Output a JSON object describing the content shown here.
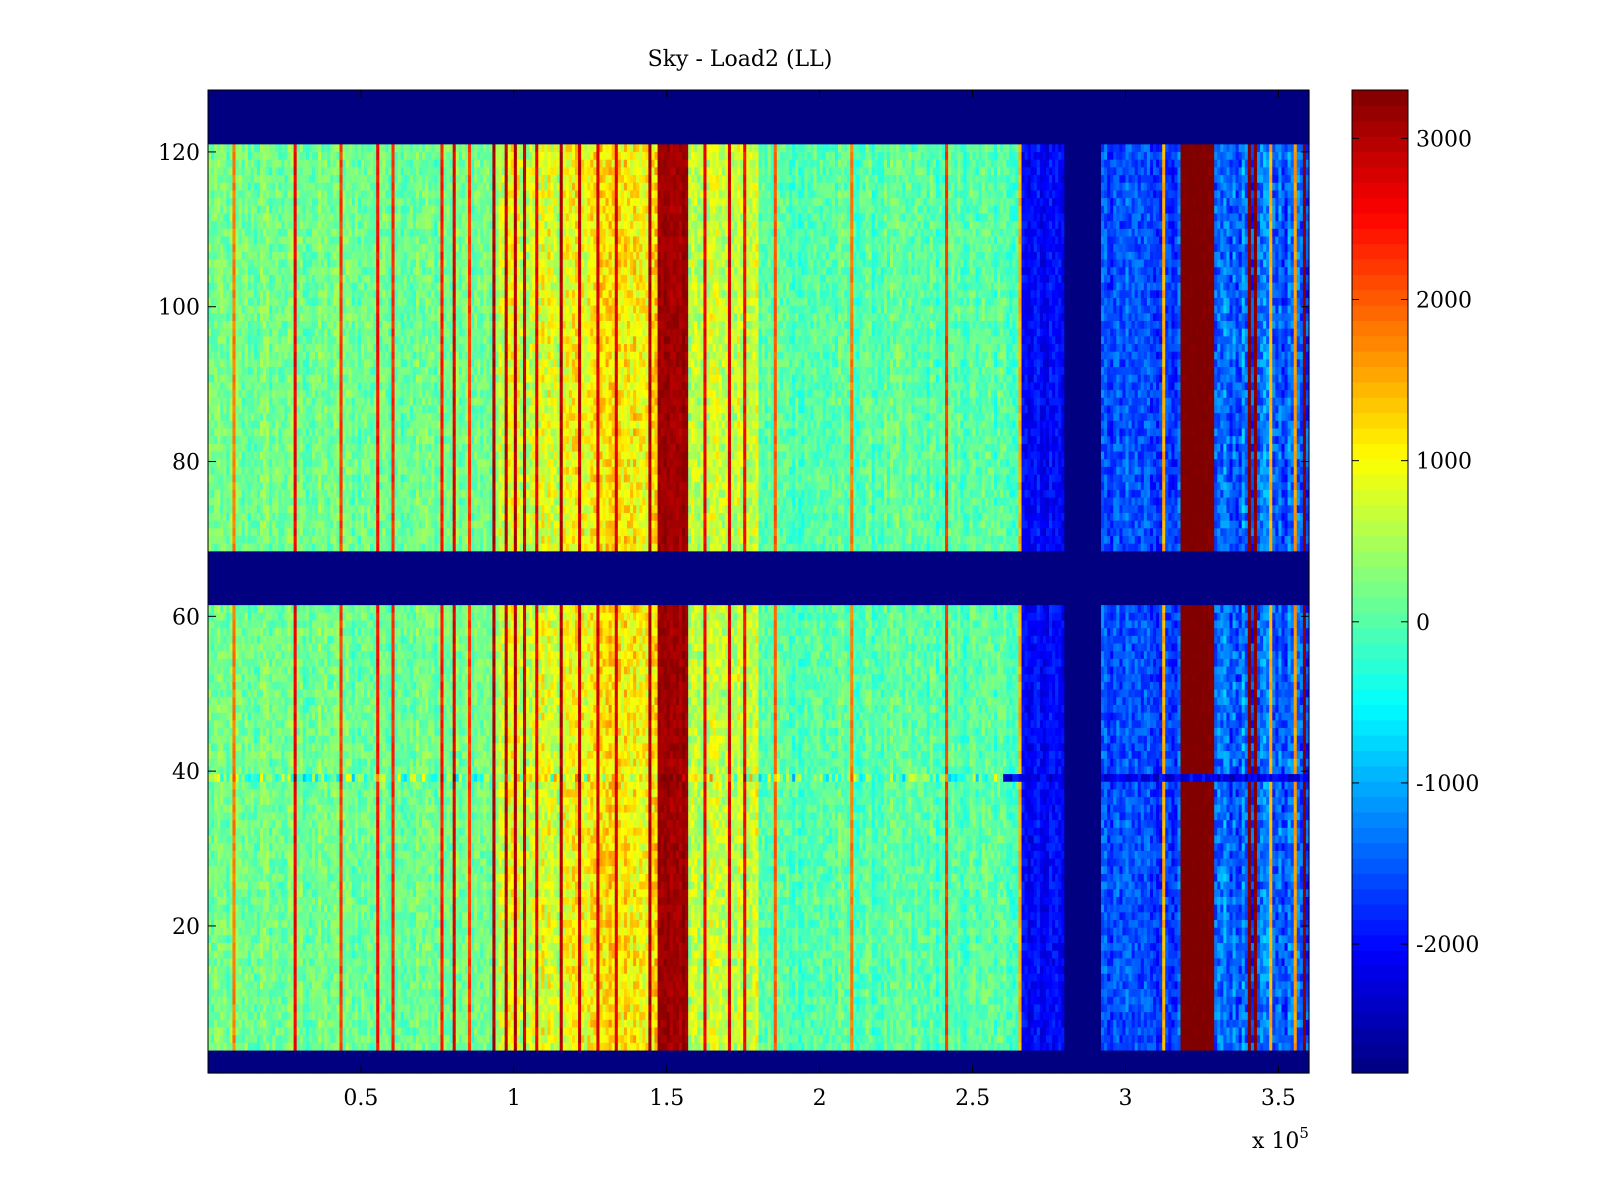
{
  "chart_data": {
    "type": "heatmap",
    "title": "Sky - Load2 (LL)",
    "xlabel": "",
    "ylabel": "",
    "x_multiplier_label": "x 10",
    "x_multiplier_exponent": "5",
    "xlim": [
      0,
      3.6
    ],
    "ylim": [
      1,
      128
    ],
    "x_ticks": [
      0.5,
      1,
      1.5,
      2,
      2.5,
      3,
      3.5
    ],
    "x_tick_labels": [
      "0.5",
      "1",
      "1.5",
      "2",
      "2.5",
      "3",
      "3.5"
    ],
    "y_ticks": [
      20,
      40,
      60,
      80,
      100,
      120
    ],
    "y_tick_labels": [
      "20",
      "40",
      "60",
      "80",
      "100",
      "120"
    ],
    "colormap": "jet",
    "colorbar": {
      "range": [
        -2800,
        3300
      ],
      "ticks": [
        -2000,
        -1000,
        0,
        1000,
        2000,
        3000
      ],
      "tick_labels": [
        "-2000",
        "-1000",
        "0",
        "1000",
        "2000",
        "3000"
      ]
    },
    "masked_rows": [
      {
        "from": 1,
        "to": 4,
        "value": -2800
      },
      {
        "from": 62,
        "to": 68,
        "value": -2800
      },
      {
        "from": 121,
        "to": 128,
        "value": -2800
      }
    ],
    "masked_columns": [
      {
        "from": 2.8,
        "to": 2.92,
        "value": -2800
      }
    ],
    "regions": [
      {
        "from": 0,
        "to": 0.95,
        "base": 150,
        "spread": 600,
        "note": "cyan-green noise"
      },
      {
        "from": 0.95,
        "to": 1.2,
        "base": 800,
        "spread": 900
      },
      {
        "from": 1.2,
        "to": 1.47,
        "base": 1100,
        "spread": 900
      },
      {
        "from": 1.47,
        "to": 1.57,
        "base": 3100,
        "spread": 300,
        "note": "strong red band"
      },
      {
        "from": 1.57,
        "to": 1.8,
        "base": 700,
        "spread": 800
      },
      {
        "from": 1.8,
        "to": 2.65,
        "base": 0,
        "spread": 600
      },
      {
        "from": 2.65,
        "to": 2.8,
        "base": -2000,
        "spread": 500
      },
      {
        "from": 2.92,
        "to": 3.18,
        "base": -1600,
        "spread": 700
      },
      {
        "from": 3.18,
        "to": 3.29,
        "base": 3300,
        "spread": 150,
        "note": "saturated red band"
      },
      {
        "from": 3.29,
        "to": 3.6,
        "base": -1400,
        "spread": 900
      }
    ],
    "hot_columns": [
      {
        "at": 0.08,
        "value": 1800
      },
      {
        "at": 0.29,
        "value": 2600
      },
      {
        "at": 0.43,
        "value": 2200
      },
      {
        "at": 0.55,
        "value": 2500
      },
      {
        "at": 0.6,
        "value": 2300
      },
      {
        "at": 0.8,
        "value": 2700
      },
      {
        "at": 0.76,
        "value": 2400
      },
      {
        "at": 0.85,
        "value": 2200
      },
      {
        "at": 0.94,
        "value": 3000
      },
      {
        "at": 0.97,
        "value": 2900
      },
      {
        "at": 1.0,
        "value": 3000
      },
      {
        "at": 1.03,
        "value": 2800
      },
      {
        "at": 1.07,
        "value": 2600
      },
      {
        "at": 1.16,
        "value": 3000
      },
      {
        "at": 1.22,
        "value": 2900
      },
      {
        "at": 1.27,
        "value": 2800
      },
      {
        "at": 1.33,
        "value": 2700
      },
      {
        "at": 1.44,
        "value": 3000
      },
      {
        "at": 1.62,
        "value": 2600
      },
      {
        "at": 1.7,
        "value": 2800
      },
      {
        "at": 1.75,
        "value": 2500
      },
      {
        "at": 1.85,
        "value": 2000
      },
      {
        "at": 2.1,
        "value": 1800
      },
      {
        "at": 2.42,
        "value": 2200
      },
      {
        "at": 2.65,
        "value": 1500
      },
      {
        "at": 3.13,
        "value": 1500
      },
      {
        "at": 3.4,
        "value": 3300
      },
      {
        "at": 3.42,
        "value": 3300
      },
      {
        "at": 3.47,
        "value": 1500
      },
      {
        "at": 3.55,
        "value": 1600
      },
      {
        "at": 3.58,
        "value": 3300
      },
      {
        "at": 3.59,
        "value": 3300
      }
    ],
    "anomaly_row": {
      "y": 39,
      "note": "horizontal artifact row"
    }
  }
}
